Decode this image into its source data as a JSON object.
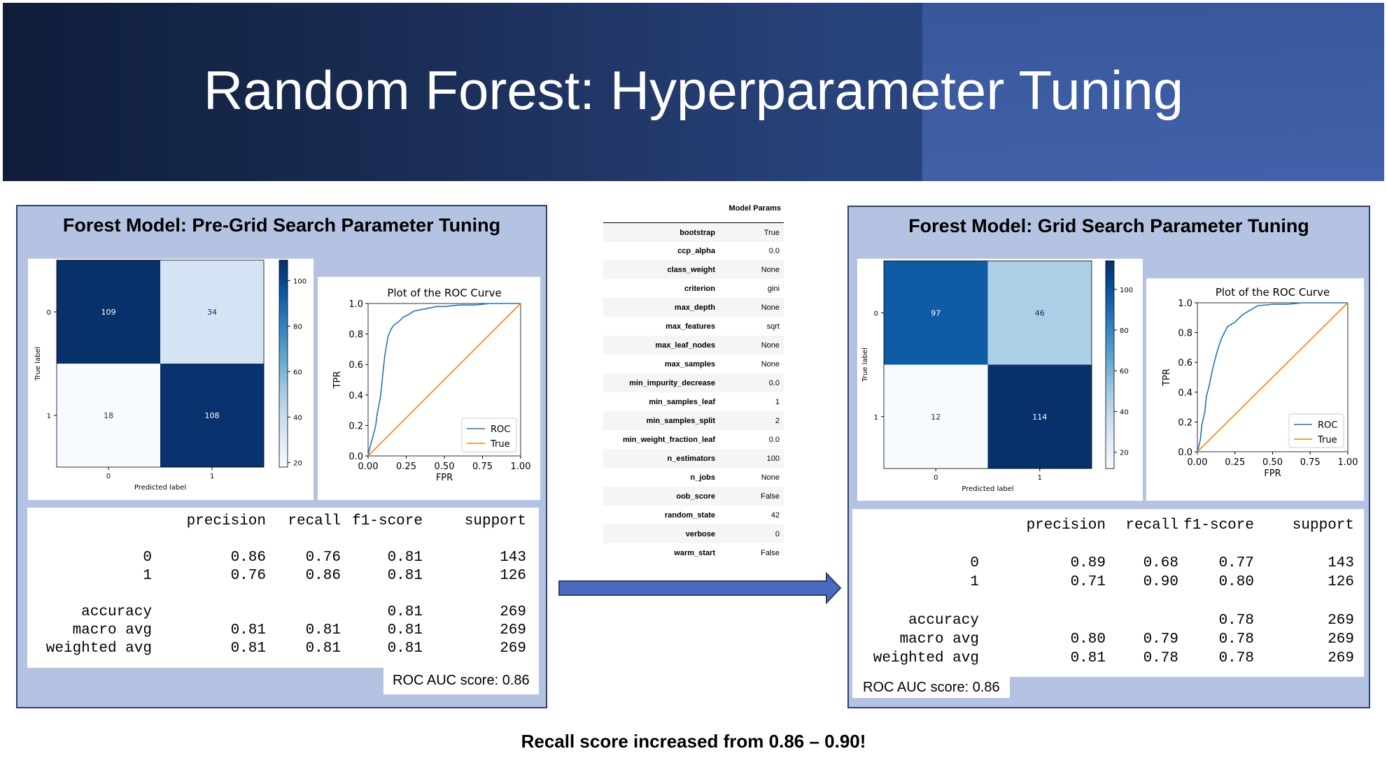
{
  "title": "Random Forest: Hyperparameter Tuning",
  "bottom_note": "Recall score increased from 0.86 – 0.90!",
  "colors": {
    "roc_line": "#1f77b4",
    "diag_line": "#ff7f0e",
    "cmap": "Blues",
    "panel_bg": "#b4c3e1"
  },
  "left": {
    "title": "Forest Model: Pre-Grid Search Parameter Tuning",
    "auc": "ROC AUC score: 0.86",
    "report": {
      "header": [
        "precision",
        "recall",
        "f1-score",
        "support"
      ],
      "rows": [
        [
          "0",
          "0.86",
          "0.76",
          "0.81",
          "143"
        ],
        [
          "1",
          "0.76",
          "0.86",
          "0.81",
          "126"
        ],
        [
          "accuracy",
          "",
          "",
          "0.81",
          "269"
        ],
        [
          "macro avg",
          "0.81",
          "0.81",
          "0.81",
          "269"
        ],
        [
          "weighted avg",
          "0.81",
          "0.81",
          "0.81",
          "269"
        ]
      ]
    }
  },
  "right": {
    "title": "Forest Model: Grid Search Parameter Tuning",
    "auc": "ROC AUC score: 0.86",
    "report": {
      "header": [
        "precision",
        "recall",
        "f1-score",
        "support"
      ],
      "rows": [
        [
          "0",
          "0.89",
          "0.68",
          "0.77",
          "143"
        ],
        [
          "1",
          "0.71",
          "0.90",
          "0.80",
          "126"
        ],
        [
          "accuracy",
          "",
          "",
          "0.78",
          "269"
        ],
        [
          "macro avg",
          "0.80",
          "0.79",
          "0.78",
          "269"
        ],
        [
          "weighted avg",
          "0.81",
          "0.78",
          "0.78",
          "269"
        ]
      ]
    }
  },
  "params": {
    "title": "Model Params",
    "rows": [
      [
        "bootstrap",
        "True"
      ],
      [
        "ccp_alpha",
        "0.0"
      ],
      [
        "class_weight",
        "None"
      ],
      [
        "criterion",
        "gini"
      ],
      [
        "max_depth",
        "None"
      ],
      [
        "max_features",
        "sqrt"
      ],
      [
        "max_leaf_nodes",
        "None"
      ],
      [
        "max_samples",
        "None"
      ],
      [
        "min_impurity_decrease",
        "0.0"
      ],
      [
        "min_samples_leaf",
        "1"
      ],
      [
        "min_samples_split",
        "2"
      ],
      [
        "min_weight_fraction_leaf",
        "0.0"
      ],
      [
        "n_estimators",
        "100"
      ],
      [
        "n_jobs",
        "None"
      ],
      [
        "oob_score",
        "False"
      ],
      [
        "random_state",
        "42"
      ],
      [
        "verbose",
        "0"
      ],
      [
        "warm_start",
        "False"
      ]
    ]
  },
  "chart_data": [
    {
      "type": "heatmap",
      "title": "",
      "xlabel": "Predicted label",
      "ylabel": "True label",
      "x_ticks": [
        "0",
        "1"
      ],
      "y_ticks": [
        "0",
        "1"
      ],
      "values": [
        [
          109,
          34
        ],
        [
          18,
          108
        ]
      ],
      "colorbar_range": [
        18,
        109
      ],
      "colorbar_ticks": [
        20,
        40,
        60,
        80,
        100
      ]
    },
    {
      "type": "line",
      "title": "Plot of the ROC Curve",
      "xlabel": "FPR",
      "ylabel": "TPR",
      "xlim": [
        0,
        1
      ],
      "ylim": [
        0,
        1
      ],
      "x_ticks": [
        "0.00",
        "0.25",
        "0.50",
        "0.75",
        "1.00"
      ],
      "y_ticks": [
        "0.0",
        "0.2",
        "0.4",
        "0.6",
        "0.8",
        "1.0"
      ],
      "legend_position": "lower-right",
      "series": [
        {
          "name": "ROC",
          "x": [
            0,
            0.01,
            0.03,
            0.05,
            0.06,
            0.08,
            0.09,
            0.1,
            0.11,
            0.12,
            0.13,
            0.15,
            0.17,
            0.2,
            0.23,
            0.27,
            0.3,
            0.35,
            0.4,
            0.45,
            0.5,
            0.6,
            0.7,
            0.8,
            1.0
          ],
          "y": [
            0,
            0.05,
            0.12,
            0.2,
            0.28,
            0.38,
            0.47,
            0.57,
            0.66,
            0.72,
            0.78,
            0.83,
            0.86,
            0.88,
            0.91,
            0.93,
            0.95,
            0.96,
            0.97,
            0.98,
            0.98,
            0.99,
            0.99,
            1.0,
            1.0
          ]
        },
        {
          "name": "True",
          "x": [
            0,
            1
          ],
          "y": [
            0,
            1
          ]
        }
      ]
    },
    {
      "type": "heatmap",
      "title": "",
      "xlabel": "Predicted label",
      "ylabel": "True label",
      "x_ticks": [
        "0",
        "1"
      ],
      "y_ticks": [
        "0",
        "1"
      ],
      "values": [
        [
          97,
          46
        ],
        [
          12,
          114
        ]
      ],
      "colorbar_range": [
        12,
        114
      ],
      "colorbar_ticks": [
        20,
        40,
        60,
        80,
        100
      ]
    },
    {
      "type": "line",
      "title": "Plot of the ROC Curve",
      "xlabel": "FPR",
      "ylabel": "TPR",
      "xlim": [
        0,
        1
      ],
      "ylim": [
        0,
        1
      ],
      "x_ticks": [
        "0.00",
        "0.25",
        "0.50",
        "0.75",
        "1.00"
      ],
      "y_ticks": [
        "0.0",
        "0.2",
        "0.4",
        "0.6",
        "0.8",
        "1.0"
      ],
      "legend_position": "lower-right",
      "series": [
        {
          "name": "ROC",
          "x": [
            0,
            0.02,
            0.03,
            0.05,
            0.06,
            0.08,
            0.1,
            0.12,
            0.14,
            0.16,
            0.18,
            0.2,
            0.25,
            0.3,
            0.35,
            0.4,
            0.5,
            0.6,
            0.7,
            0.8,
            1.0
          ],
          "y": [
            0,
            0.08,
            0.18,
            0.27,
            0.37,
            0.45,
            0.55,
            0.63,
            0.7,
            0.76,
            0.8,
            0.84,
            0.87,
            0.92,
            0.95,
            0.98,
            0.99,
            0.99,
            1.0,
            1.0,
            1.0
          ]
        },
        {
          "name": "True",
          "x": [
            0,
            1
          ],
          "y": [
            0,
            1
          ]
        }
      ]
    }
  ]
}
